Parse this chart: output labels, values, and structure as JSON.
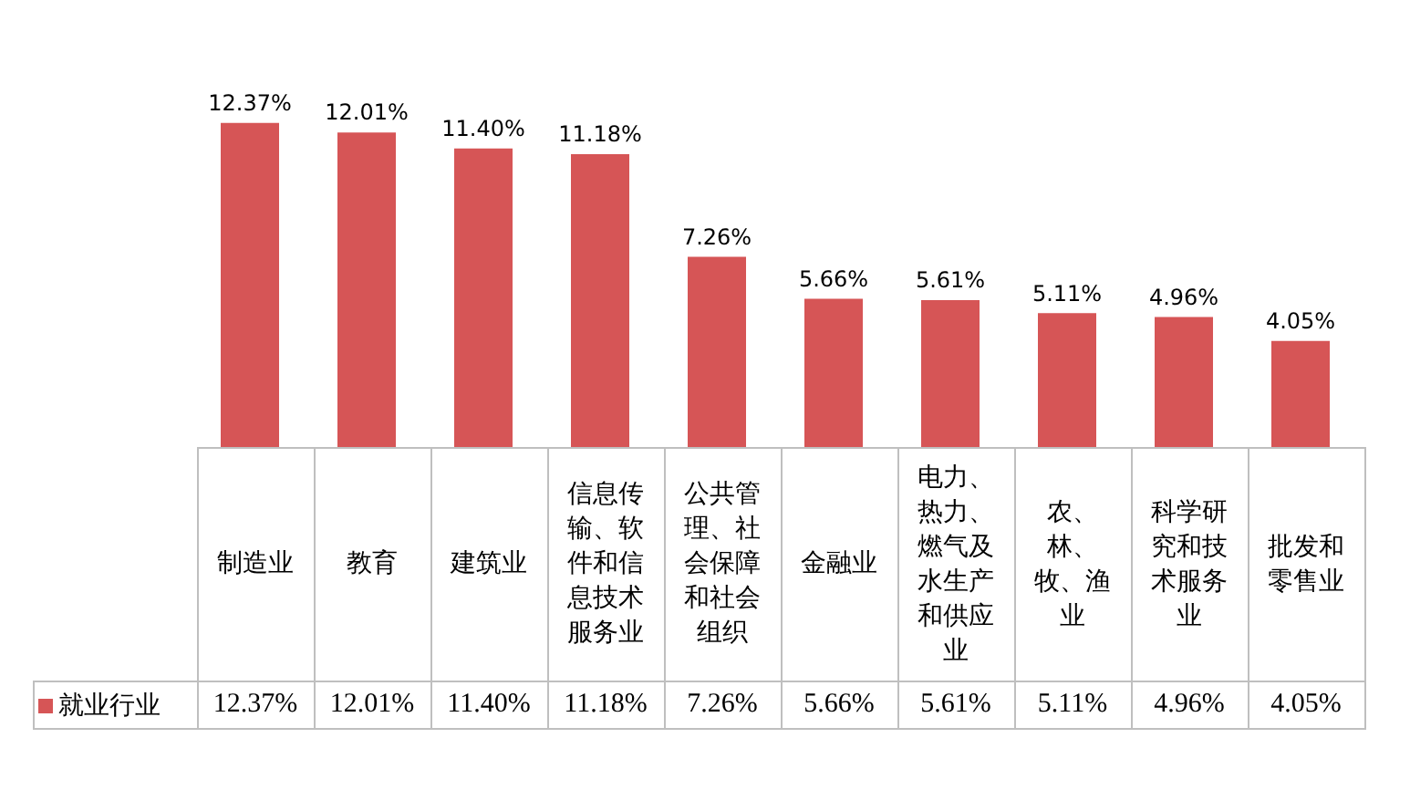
{
  "chart_data": {
    "type": "bar",
    "categories": [
      "制造业",
      "教育",
      "建筑业",
      "信息传输、软件和信息技术服务业",
      "公共管理、社会保障和社会组织",
      "金融业",
      "电力、热力、燃气及水生产和供应业",
      "农、林、牧、渔业",
      "科学研究和技术服务业",
      "批发和零售业"
    ],
    "series": [
      {
        "name": "就业行业",
        "color": "#d65556",
        "values": [
          12.37,
          12.01,
          11.4,
          11.18,
          7.26,
          5.66,
          5.61,
          5.11,
          4.96,
          4.05
        ],
        "value_labels": [
          "12.37%",
          "12.01%",
          "11.40%",
          "11.18%",
          "7.26%",
          "5.66%",
          "5.61%",
          "5.11%",
          "4.96%",
          "4.05%"
        ]
      }
    ],
    "legend": "bottom left"
  }
}
